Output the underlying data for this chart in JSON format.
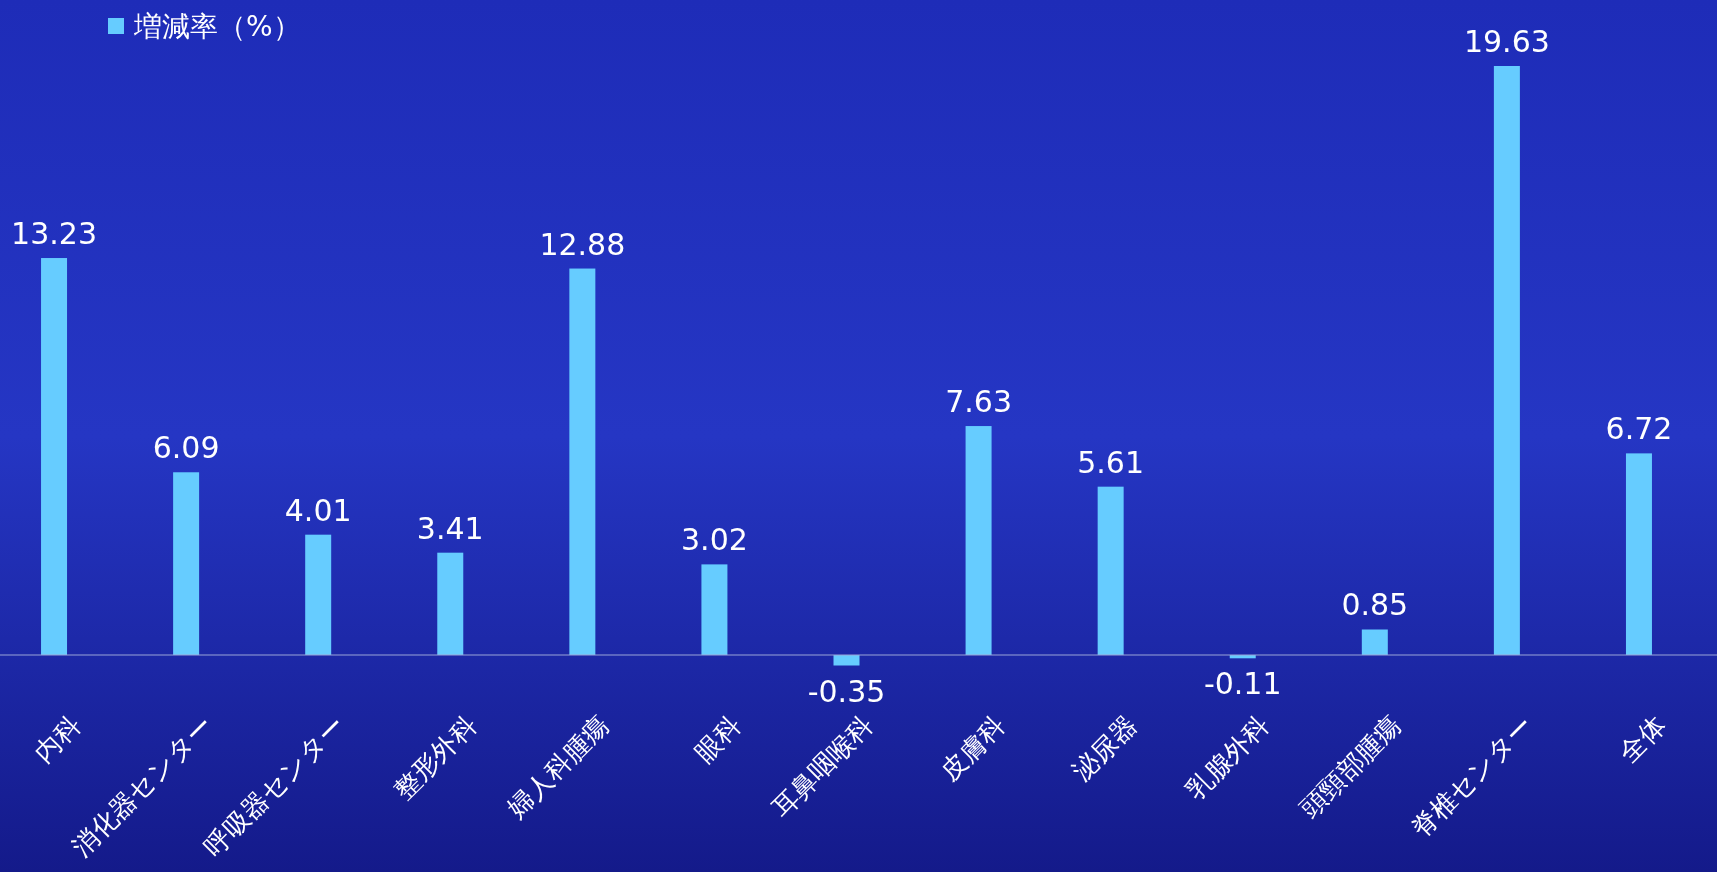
{
  "chart_data": {
    "type": "bar",
    "categories": [
      "内科",
      "消化器センター",
      "呼吸器センター",
      "整形外科",
      "婦人科腫瘍",
      "眼科",
      "耳鼻咽喉科",
      "皮膚科",
      "泌尿器",
      "乳腺外科",
      "頭頸部腫瘍",
      "脊椎センター",
      "全体"
    ],
    "series": [
      {
        "name": "増減率（%）",
        "color": "#66ccff",
        "values": [
          13.23,
          6.09,
          4.01,
          3.41,
          12.88,
          3.02,
          -0.35,
          7.63,
          5.61,
          -0.11,
          0.85,
          19.63,
          6.72
        ]
      }
    ],
    "data_labels": true,
    "legend": "top left"
  }
}
